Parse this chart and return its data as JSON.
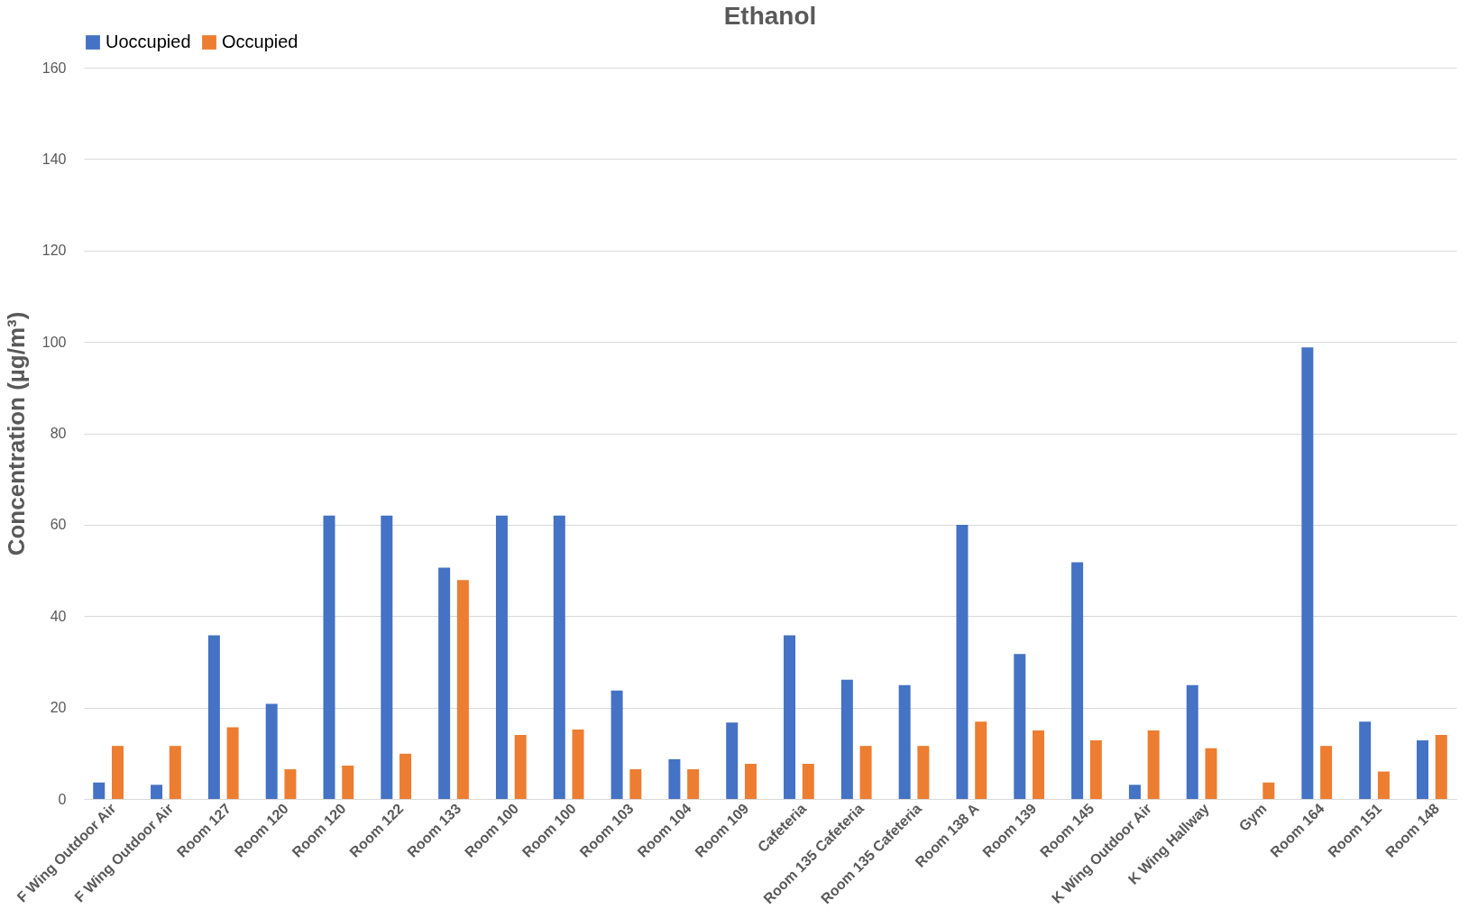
{
  "chart_data": {
    "type": "bar",
    "title": "Ethanol",
    "ylabel": "Concentration (µg/m³)",
    "categories": [
      "F Wing Outdoor Air",
      "F Wing Outdoor Air",
      "Room 127",
      "Room 120",
      "Room 120",
      "Room 122",
      "Room 133",
      "Room 100",
      "Room 100",
      "Room 103",
      "Room 104",
      "Room 109",
      "Cafeteria",
      "Room 135 Cafeteria",
      "Room 135 Cafeteria",
      "Room 138 A",
      "Room 139",
      "Room 145",
      "K Wing Outdoor Air",
      "K Wing  Hallway",
      "Gym",
      "Room 164",
      "Room 151",
      "Room 148"
    ],
    "series": [
      {
        "name": "Uoccupied",
        "color": "#4472c4",
        "values": [
          3.6,
          3.1,
          35.8,
          20.8,
          62,
          62,
          50.6,
          62,
          62,
          23.7,
          8.7,
          16.7,
          35.8,
          26.1,
          24.9,
          60,
          31.7,
          51.8,
          3.1,
          24.9,
          null,
          98.8,
          16.9,
          12.8
        ]
      },
      {
        "name": "Occupied",
        "color": "#ed7d31",
        "values": [
          11.6,
          11.6,
          15.7,
          6.5,
          7.3,
          9.9,
          47.9,
          14,
          15.2,
          6.5,
          6.5,
          7.7,
          7.7,
          11.6,
          11.6,
          16.9,
          15,
          12.8,
          15,
          11.1,
          3.6,
          11.6,
          6,
          14
        ]
      }
    ],
    "ylim": [
      0,
      160
    ],
    "yticks": [
      0,
      20,
      40,
      60,
      80,
      100,
      120,
      140,
      160
    ],
    "grid": "y",
    "legend": "top"
  }
}
